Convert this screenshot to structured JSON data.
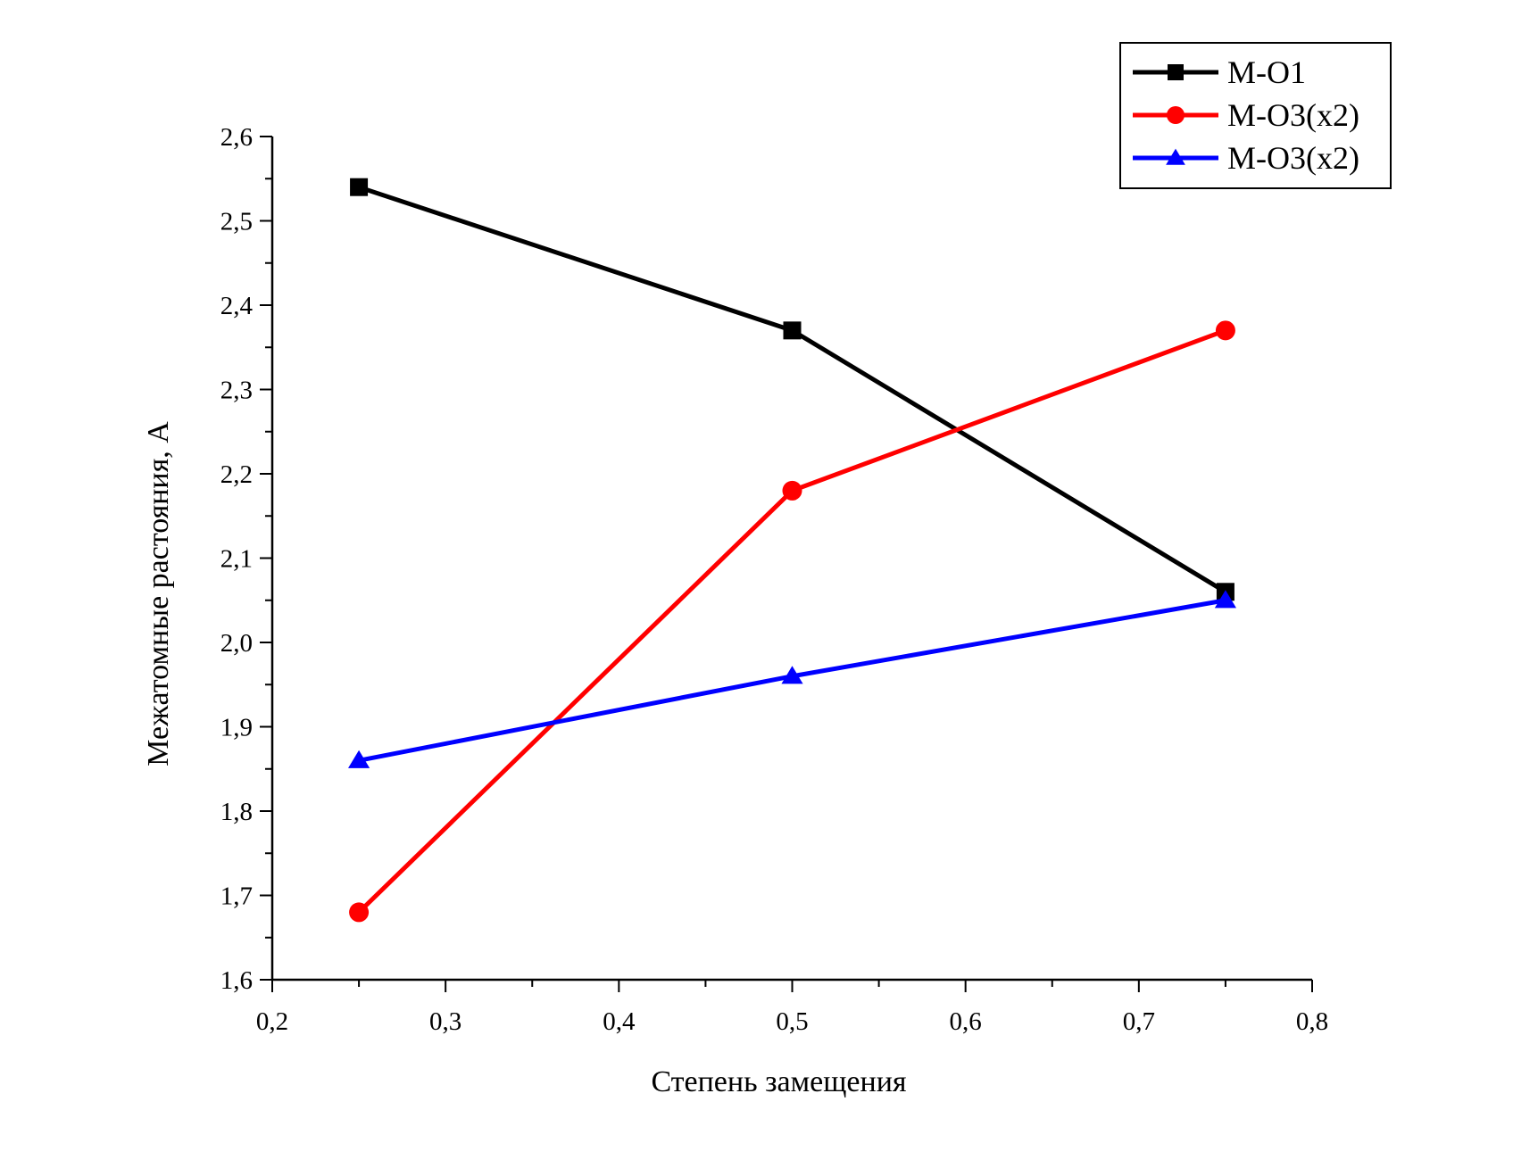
{
  "chart_data": {
    "type": "line",
    "title": "",
    "xlabel": "Степень замещения",
    "ylabel": "Межатомные растояния, А",
    "xlim": [
      0.2,
      0.8
    ],
    "ylim": [
      1.6,
      2.6
    ],
    "x_major_ticks": [
      0.2,
      0.3,
      0.4,
      0.5,
      0.6,
      0.7,
      0.8
    ],
    "x_tick_labels": [
      "0,2",
      "0,3",
      "0,4",
      "0,5",
      "0,6",
      "0,7",
      "0,8"
    ],
    "y_major_ticks": [
      1.6,
      1.7,
      1.8,
      1.9,
      2.0,
      2.1,
      2.2,
      2.3,
      2.4,
      2.5,
      2.6
    ],
    "y_tick_labels": [
      "1,6",
      "1,7",
      "1,8",
      "1,9",
      "2,0",
      "2,1",
      "2,2",
      "2,3",
      "2,4",
      "2,5",
      "2,6"
    ],
    "grid": false,
    "legend_position": "top-right",
    "series": [
      {
        "name": "M-O1",
        "color": "#000000",
        "marker": "square",
        "x": [
          0.25,
          0.5,
          0.75
        ],
        "y": [
          2.54,
          2.37,
          2.06
        ]
      },
      {
        "name": "M-O3(x2)",
        "color": "#ff0000",
        "marker": "circle",
        "x": [
          0.25,
          0.5,
          0.75
        ],
        "y": [
          1.68,
          2.18,
          2.37
        ]
      },
      {
        "name": "M-O3(x2)",
        "color": "#0000ff",
        "marker": "triangle",
        "x": [
          0.25,
          0.5,
          0.75
        ],
        "y": [
          1.86,
          1.96,
          2.05
        ]
      }
    ]
  }
}
